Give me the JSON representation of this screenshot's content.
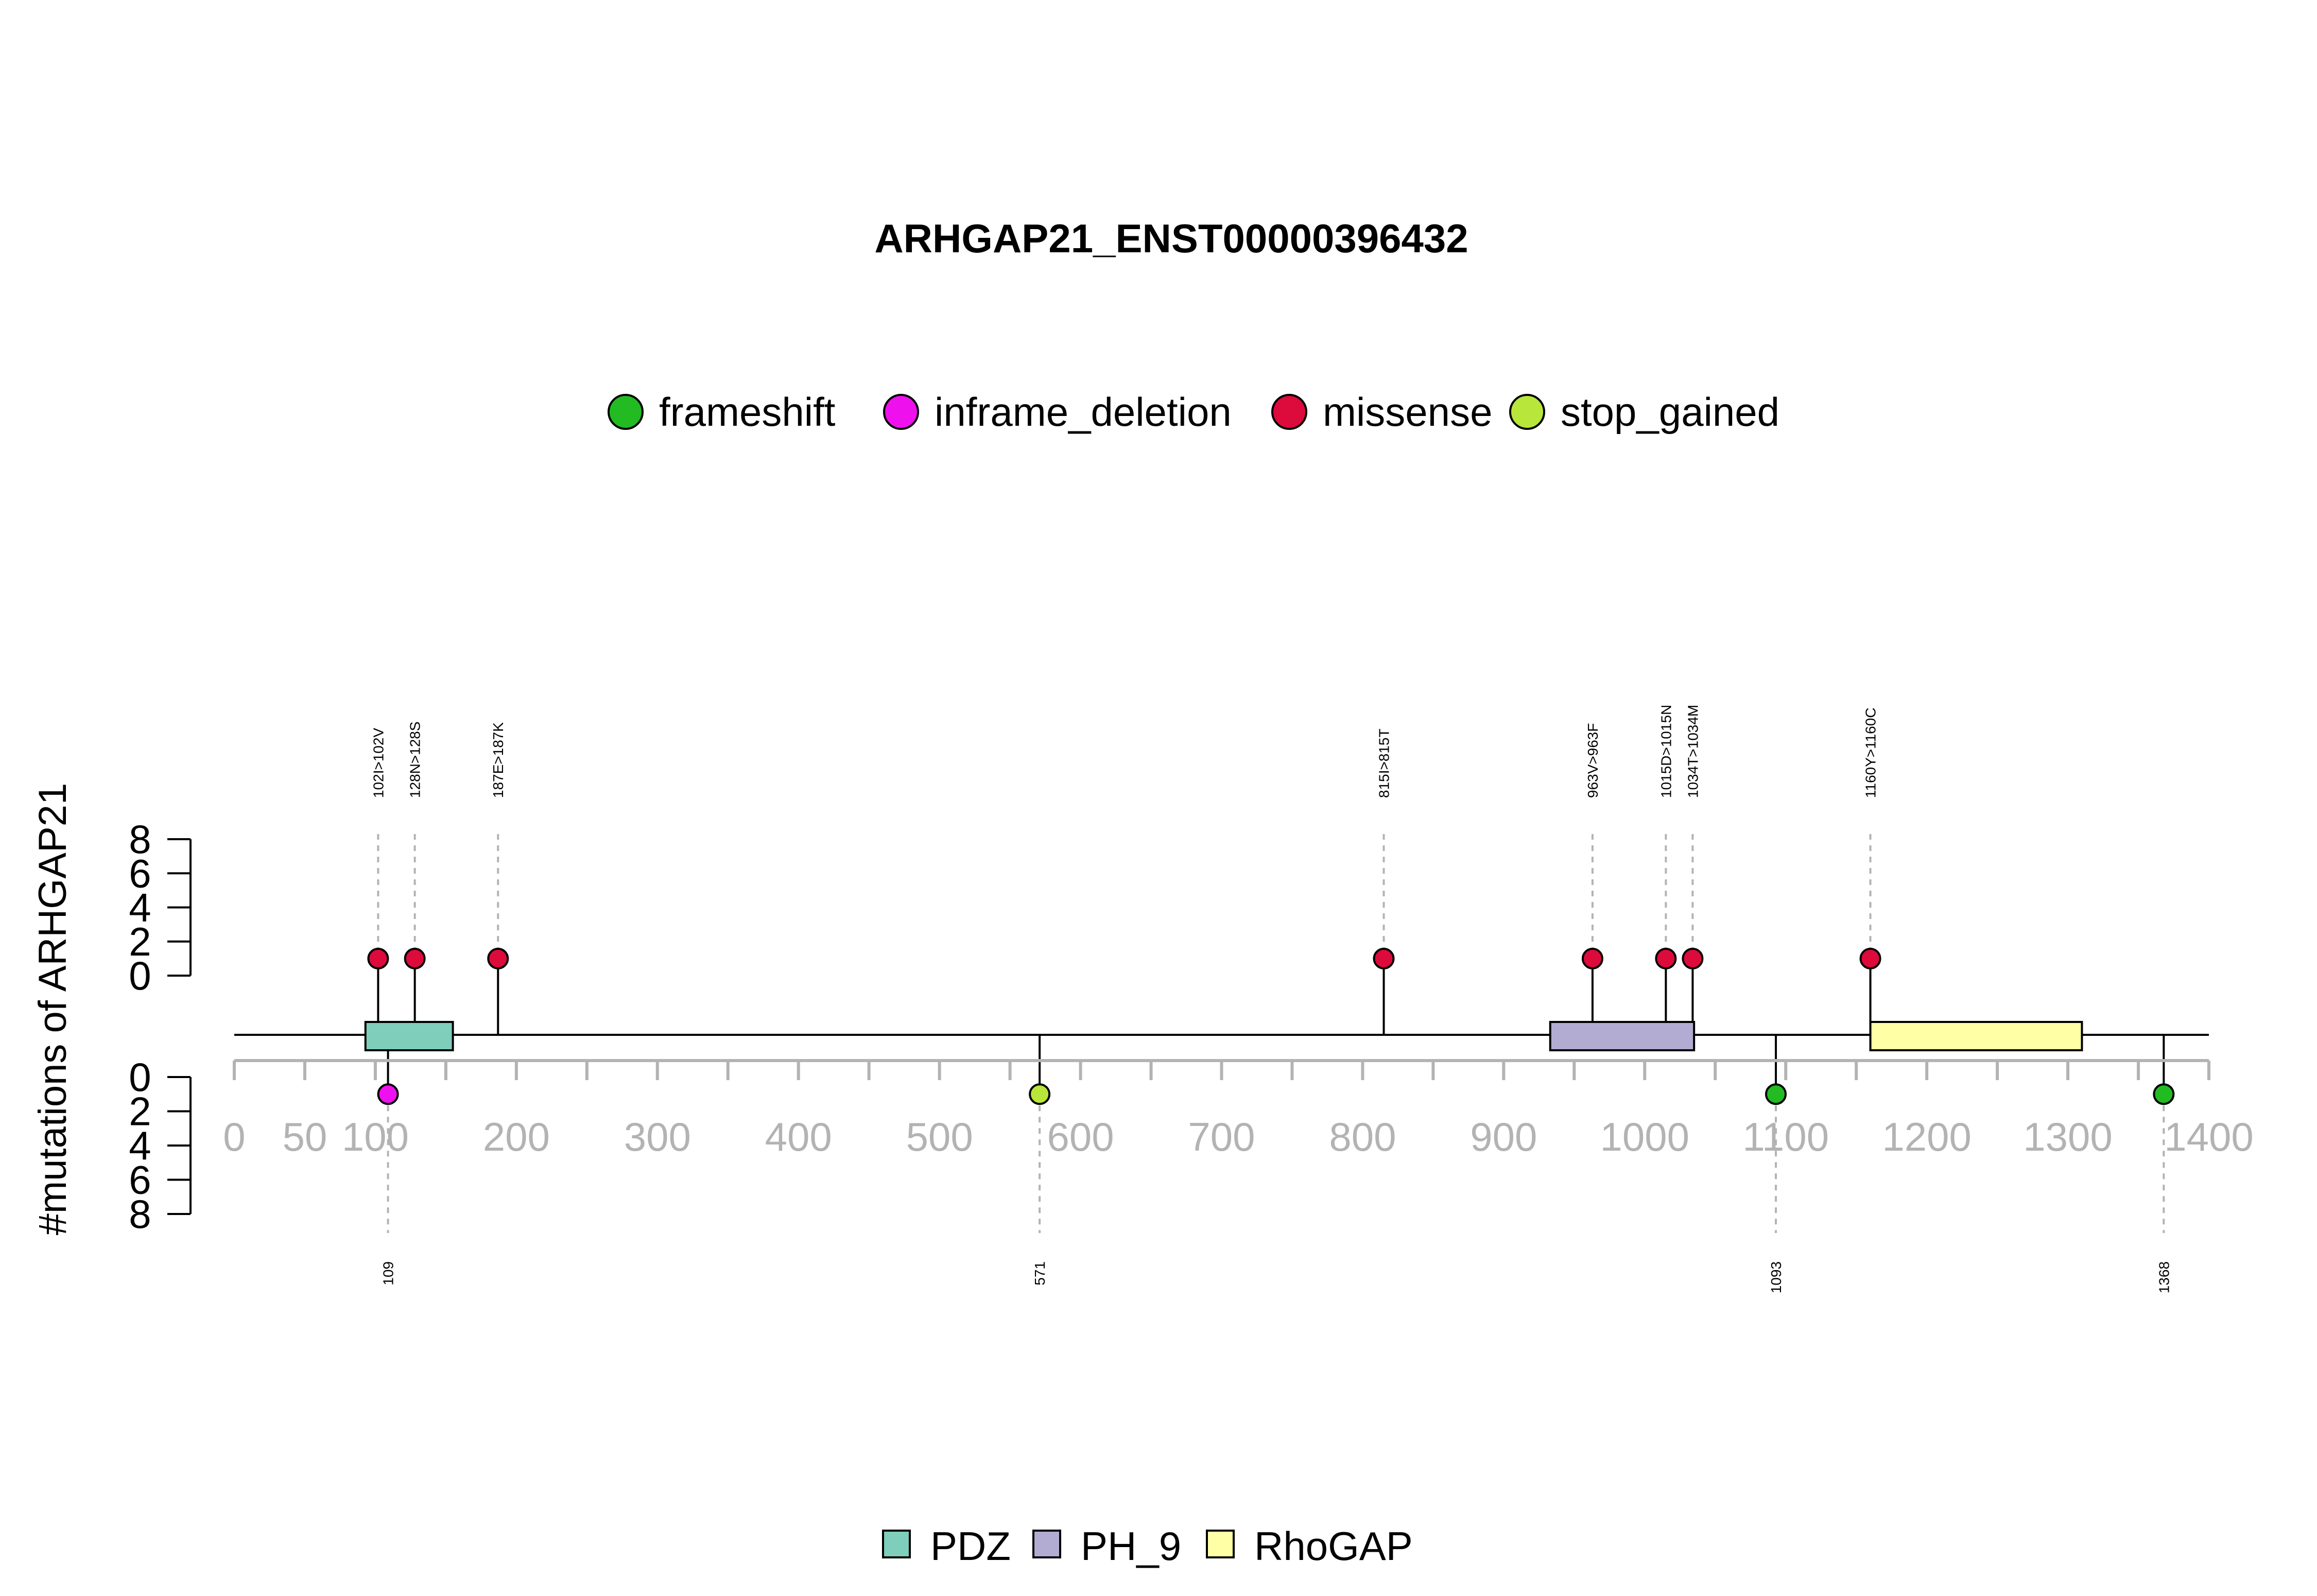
{
  "chart_data": {
    "type": "lollipop",
    "title": "ARHGAP21_ENST00000396432",
    "ylabel": "#mutations of ARHGAP21",
    "xlim": [
      0,
      1400
    ],
    "x_ticks": [
      0,
      50,
      100,
      200,
      300,
      400,
      500,
      600,
      700,
      800,
      900,
      1000,
      1100,
      1200,
      1300,
      1400
    ],
    "x_minor_ticks": [
      150,
      250,
      350,
      450,
      550,
      650,
      750,
      850,
      950,
      1050,
      1150,
      1250,
      1350
    ],
    "upper_y_ticks": [
      "0",
      "2",
      "4",
      "6",
      "8"
    ],
    "lower_y_ticks": [
      "0",
      "2",
      "4",
      "6",
      "8"
    ],
    "ylim": [
      0,
      8
    ],
    "mutation_legend": [
      {
        "label": "frameshift",
        "color": "#22bb22"
      },
      {
        "label": "inframe_deletion",
        "color": "#ee11ee"
      },
      {
        "label": "missense",
        "color": "#dd0a3c"
      },
      {
        "label": "stop_gained",
        "color": "#b8e63a"
      }
    ],
    "domain_legend": [
      {
        "label": "PDZ",
        "color": "#7fcdbb"
      },
      {
        "label": "PH_9",
        "color": "#b2abd2"
      },
      {
        "label": "RhoGAP",
        "color": "#ffffa6"
      }
    ],
    "domains": [
      {
        "name": "PDZ",
        "start": 93,
        "end": 155,
        "color": "#7fcdbb"
      },
      {
        "name": "PH_9",
        "start": 933,
        "end": 1035,
        "color": "#b2abd2"
      },
      {
        "name": "RhoGAP",
        "start": 1160,
        "end": 1310,
        "color": "#ffffa6"
      }
    ],
    "upper_mutations": [
      {
        "position": 102,
        "label": "102I>102V",
        "count": 1,
        "type": "missense",
        "color": "#dd0a3c"
      },
      {
        "position": 128,
        "label": "128N>128S",
        "count": 1,
        "type": "missense",
        "color": "#dd0a3c"
      },
      {
        "position": 187,
        "label": "187E>187K",
        "count": 1,
        "type": "missense",
        "color": "#dd0a3c"
      },
      {
        "position": 815,
        "label": "815I>815T",
        "count": 1,
        "type": "missense",
        "color": "#dd0a3c"
      },
      {
        "position": 963,
        "label": "963V>963F",
        "count": 1,
        "type": "missense",
        "color": "#dd0a3c"
      },
      {
        "position": 1015,
        "label": "1015D>1015N",
        "count": 1,
        "type": "missense",
        "color": "#dd0a3c"
      },
      {
        "position": 1034,
        "label": "1034T>1034M",
        "count": 1,
        "type": "missense",
        "color": "#dd0a3c"
      },
      {
        "position": 1160,
        "label": "1160Y>1160C",
        "count": 1,
        "type": "missense",
        "color": "#dd0a3c"
      }
    ],
    "lower_mutations": [
      {
        "position": 109,
        "label": "109",
        "count": 1,
        "type": "inframe_deletion",
        "color": "#ee11ee"
      },
      {
        "position": 571,
        "label": "571",
        "count": 1,
        "type": "stop_gained",
        "color": "#b8e63a"
      },
      {
        "position": 1093,
        "label": "1093",
        "count": 1,
        "type": "frameshift",
        "color": "#22bb22"
      },
      {
        "position": 1368,
        "label": "1368",
        "count": 1,
        "type": "frameshift",
        "color": "#22bb22"
      }
    ]
  }
}
